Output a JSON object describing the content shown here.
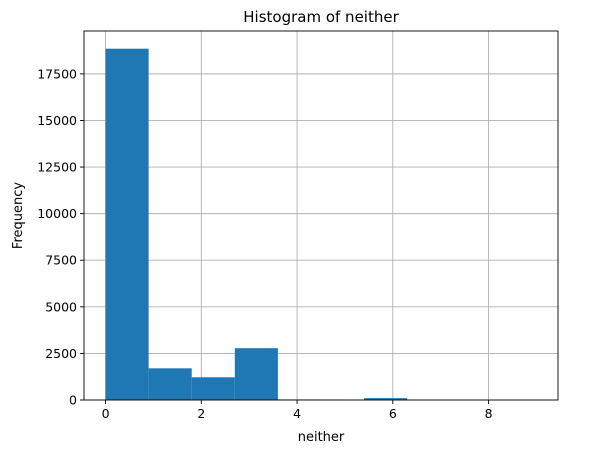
{
  "chart_data": {
    "type": "bar",
    "title": "Histogram of neither",
    "xlabel": "neither",
    "ylabel": "Frequency",
    "bin_edges": [
      0,
      0.9,
      1.8,
      2.7,
      3.6,
      4.5,
      5.4,
      6.3,
      7.2,
      8.1,
      9.0
    ],
    "values": [
      18850,
      1700,
      1220,
      2780,
      30,
      20,
      100,
      0,
      0,
      0
    ],
    "xlim": [
      -0.45,
      9.45
    ],
    "ylim": [
      0,
      19800
    ],
    "xticks": [
      0,
      2,
      4,
      6,
      8
    ],
    "xtick_labels": [
      "0",
      "2",
      "4",
      "6",
      "8"
    ],
    "yticks": [
      0,
      2500,
      5000,
      7500,
      10000,
      12500,
      15000,
      17500
    ],
    "ytick_labels": [
      "0",
      "2500",
      "5000",
      "7500",
      "10000",
      "12500",
      "15000",
      "17500"
    ],
    "grid": true,
    "bar_color": "#1f77b4"
  }
}
